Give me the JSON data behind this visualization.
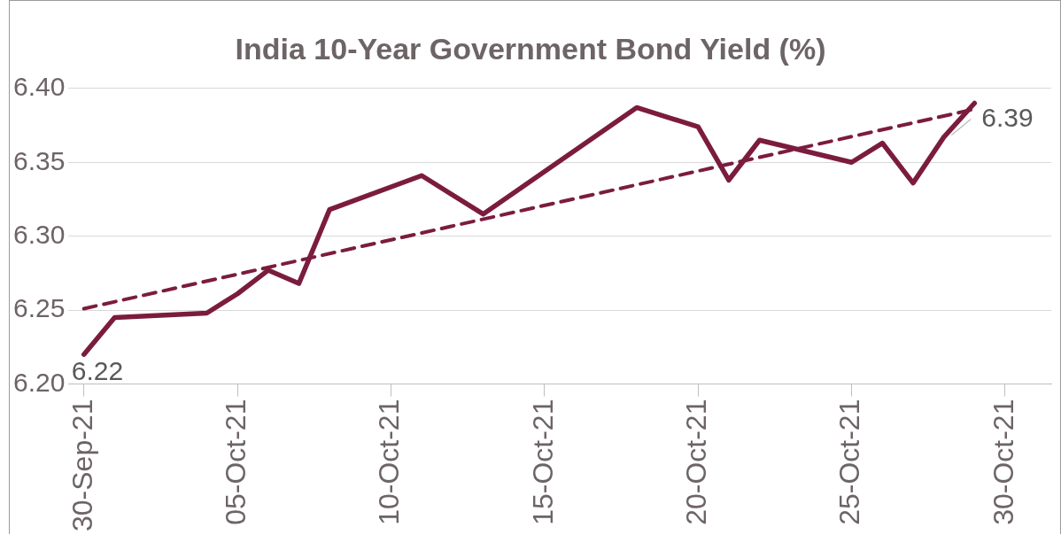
{
  "chart_data": {
    "type": "line",
    "title": "India 10-Year Government Bond Yield (%)",
    "x": [
      "--09-30",
      "--10-01",
      "--10-04",
      "--10-05",
      "--10-06",
      "--10-07",
      "--10-08",
      "--10-11",
      "--10-13",
      "--10-18",
      "--10-20",
      "--10-21",
      "--10-22",
      "--10-25",
      "--10-26",
      "--10-27",
      "--10-28",
      "--10-29"
    ],
    "series": [
      {
        "color": "#7b1c3e",
        "line_style": "solid",
        "values": [
          6.22,
          6.245,
          6.248,
          6.261,
          6.277,
          6.268,
          6.318,
          6.341,
          6.315,
          6.387,
          6.374,
          6.338,
          6.365,
          6.35,
          6.363,
          6.336,
          6.367,
          6.39
        ]
      },
      {
        "type": "line",
        "color": "#7b1c3e",
        "line_style": "dashed",
        "x": [
          "--09-30",
          "--10-29"
        ],
        "values": [
          6.251,
          6.386
        ]
      }
    ],
    "xlim": [
      "--09-29T12:00",
      "--10-31T12:00"
    ],
    "xticks": [
      {
        "value": "--09-30",
        "label": "30-Sep-21"
      },
      {
        "value": "--10-05",
        "label": "05-Oct-21"
      },
      {
        "value": "--10-10",
        "label": "10-Oct-21"
      },
      {
        "value": "--10-15",
        "label": "15-Oct-21"
      },
      {
        "value": "--10-20",
        "label": "20-Oct-21"
      },
      {
        "value": "--10-25",
        "label": "25-Oct-21"
      },
      {
        "value": "--10-30",
        "label": "30-Oct-21"
      }
    ],
    "ylim": [
      6.2,
      6.4
    ],
    "yticks": [
      {
        "value": 6.2,
        "label": "6.20"
      },
      {
        "value": 6.25,
        "label": "6.25"
      },
      {
        "value": 6.3,
        "label": "6.30"
      },
      {
        "value": 6.35,
        "label": "6.35"
      },
      {
        "value": 6.4,
        "label": "6.40"
      }
    ],
    "annotations": [
      {
        "text": "6.22",
        "x": "--09-30",
        "y": 6.22
      },
      {
        "text": "6.39",
        "x": "--10-29",
        "y": 6.39
      }
    ],
    "grid": "y",
    "legend": false,
    "marker": "none"
  }
}
